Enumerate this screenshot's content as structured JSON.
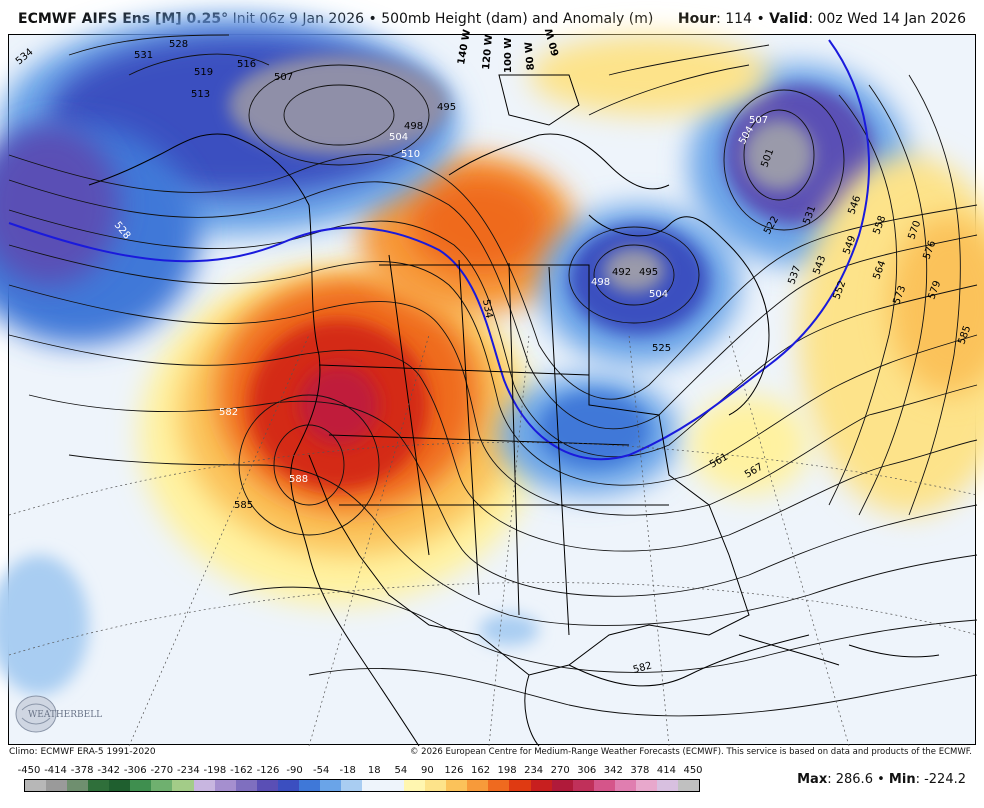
{
  "header": {
    "model": "ECMWF AIFS Ens [M] 0.25",
    "degree": "°",
    "init": "Init 06z 9 Jan 2026",
    "bullet": "•",
    "product": "500mb Height (dam) and Anomaly (m)",
    "hour_label": "Hour",
    "hour_value": ": 114",
    "valid_label": "Valid",
    "valid_value": ": 00z Wed 14 Jan 2026"
  },
  "footer": {
    "climo": "Climo: ECMWF ERA-5 1991-2020",
    "copyright": "© 2026 European Centre for Medium-Range Weather Forecasts (ECMWF). This service is based on data and products of the ECMWF."
  },
  "stats": {
    "max_label": "Max",
    "max_value": ": 286.6",
    "min_label": "Min",
    "min_value": ": -224.2",
    "bullet": "•"
  },
  "logo": {
    "text": "WEATHERBELL"
  },
  "scale": {
    "ticks": [
      "-450",
      "-414",
      "-378",
      "-342",
      "-306",
      "-270",
      "-234",
      "-198",
      "-162",
      "-126",
      "-90",
      "-54",
      "-18",
      "18",
      "54",
      "90",
      "126",
      "162",
      "198",
      "234",
      "270",
      "306",
      "342",
      "378",
      "414",
      "450"
    ],
    "colors": [
      "#b7b7b7",
      "#9a9a9a",
      "#6f8f6f",
      "#2f6f3a",
      "#1f5f2f",
      "#3f8f4f",
      "#6fb06f",
      "#a3cc88",
      "#c8b6e0",
      "#a58fcf",
      "#7f6fbf",
      "#5a4fb5",
      "#3b4fc0",
      "#3f78d8",
      "#6aa4e8",
      "#a9cdf2",
      "#eef4fb",
      "#eef4fb",
      "#fff6b0",
      "#fde38a",
      "#fbc25a",
      "#f79a3a",
      "#ef6a1f",
      "#df3a12",
      "#c81f1f",
      "#b01a3a",
      "#c0305a",
      "#d5558a",
      "#e07eb0",
      "#e8a8cc",
      "#d8c0e0",
      "#c0c0c0"
    ]
  },
  "map": {
    "contour_labels": [
      "534",
      "531",
      "528",
      "519",
      "516",
      "513",
      "507",
      "498",
      "495",
      "504",
      "510",
      "528",
      "534",
      "582",
      "585",
      "588",
      "492",
      "495",
      "498",
      "504",
      "525",
      "522",
      "531",
      "537",
      "543",
      "546",
      "549",
      "552",
      "558",
      "564",
      "570",
      "576",
      "573",
      "579",
      "585",
      "561",
      "567",
      "582",
      "501",
      "504",
      "507"
    ],
    "longitude_labels": [
      "140 W",
      "120 W",
      "100 W",
      "80 W",
      "60 W"
    ]
  }
}
